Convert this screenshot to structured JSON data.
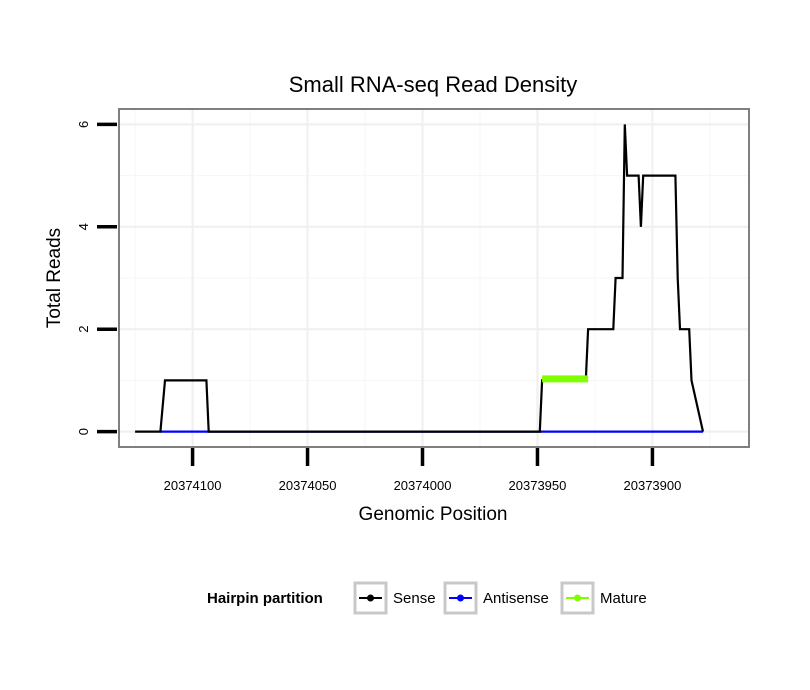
{
  "chart_data": {
    "type": "line",
    "title": "Small RNA-seq Read Density",
    "xlabel": "Genomic Position",
    "ylabel": "Total Reads",
    "x_reversed": true,
    "xlim": [
      20374132,
      20373858
    ],
    "ylim": [
      -0.3,
      6.3
    ],
    "x_ticks": [
      20374100,
      20374050,
      20374000,
      20373950,
      20373900
    ],
    "x_tick_labels": [
      "20374100",
      "20374050",
      "20374000",
      "20373950",
      "20373900"
    ],
    "y_ticks": [
      0,
      2,
      4,
      6
    ],
    "y_tick_labels": [
      "0",
      "2",
      "4",
      "6"
    ],
    "grid": true,
    "legend": {
      "title": "Hairpin partition",
      "position": "bottom",
      "entries": [
        "Sense",
        "Antisense",
        "Mature"
      ]
    },
    "series": [
      {
        "name": "Sense",
        "color": "#000000",
        "x": [
          20374125,
          20374114,
          20374112,
          20374094,
          20374093,
          20373949,
          20373948,
          20373929,
          20373928,
          20373917,
          20373916,
          20373913,
          20373912,
          20373911,
          20373910,
          20373906,
          20373905,
          20373904,
          20373902,
          20373890,
          20373889,
          20373888,
          20373887,
          20373884,
          20373883,
          20373878
        ],
        "values": [
          0,
          0,
          1,
          1,
          0,
          0,
          1,
          1,
          2,
          2,
          3,
          3,
          6,
          5,
          5,
          5,
          4,
          5,
          5,
          5,
          3,
          2,
          2,
          2,
          1,
          0
        ]
      },
      {
        "name": "Antisense",
        "color": "#0000ff",
        "x": [
          20374114,
          20373878
        ],
        "values": [
          0,
          0
        ]
      },
      {
        "name": "Mature",
        "color": "#7fff00",
        "x": [
          20373948,
          20373928
        ],
        "values": [
          1.03,
          1.03
        ]
      }
    ]
  }
}
